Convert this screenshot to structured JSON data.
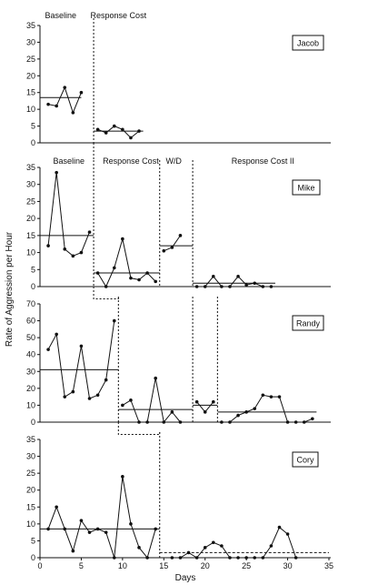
{
  "figure": {
    "ylabel": "Rate of Aggression per Hour",
    "xlabel": "Days",
    "x_ticks": [
      0,
      5,
      10,
      15,
      20,
      25,
      30,
      35
    ]
  },
  "chart_data": [
    {
      "type": "line",
      "participant": "Jacob",
      "ylim": [
        0,
        35
      ],
      "y_ticks": [
        0,
        5,
        10,
        15,
        20,
        25,
        30,
        35
      ],
      "phase_labels": [
        {
          "text": "Baseline",
          "x": 2.5
        },
        {
          "text": "Response Cost",
          "x": 9.5
        }
      ],
      "phase_changes": [
        6.5
      ],
      "series": [
        {
          "x": [
            1,
            2,
            3,
            4,
            5
          ],
          "values": [
            11.5,
            11,
            16.5,
            9,
            15
          ]
        },
        {
          "x": [
            7,
            8,
            9,
            10,
            11,
            12
          ],
          "values": [
            4,
            3,
            5,
            4,
            1.5,
            3.5
          ]
        }
      ],
      "means": [
        {
          "x0": 0,
          "x1": 5,
          "value": 13.5
        },
        {
          "x0": 6.5,
          "x1": 12.5,
          "value": 3.5
        }
      ]
    },
    {
      "type": "line",
      "participant": "Mike",
      "ylim": [
        0,
        35
      ],
      "y_ticks": [
        0,
        5,
        10,
        15,
        20,
        25,
        30,
        35
      ],
      "phase_labels": [
        {
          "text": "Baseline",
          "x": 3.5
        },
        {
          "text": "Response Cost",
          "x": 11
        },
        {
          "text": "W/D",
          "x": 16.2
        },
        {
          "text": "Response Cost II",
          "x": 27
        }
      ],
      "phase_changes": [
        6.5,
        14.5,
        18.5
      ],
      "series": [
        {
          "x": [
            1,
            2,
            3,
            4,
            5,
            6
          ],
          "values": [
            12,
            33.5,
            11,
            9,
            10,
            16
          ]
        },
        {
          "x": [
            7,
            8,
            9,
            10,
            11,
            12,
            13,
            14
          ],
          "values": [
            4,
            0,
            5.5,
            14,
            2.5,
            2,
            4,
            1.5
          ]
        },
        {
          "x": [
            15,
            16,
            17
          ],
          "values": [
            10.5,
            11.5,
            15
          ]
        },
        {
          "x": [
            19,
            20,
            21,
            22,
            23,
            24,
            25,
            26,
            27,
            28
          ],
          "values": [
            0,
            0,
            3,
            0,
            0,
            3,
            0.5,
            1,
            0,
            0
          ]
        }
      ],
      "means": [
        {
          "x0": 0,
          "x1": 6.5,
          "value": 15
        },
        {
          "x0": 6.5,
          "x1": 14.5,
          "value": 4
        },
        {
          "x0": 14.5,
          "x1": 18.5,
          "value": 12
        },
        {
          "x0": 18.5,
          "x1": 28.5,
          "value": 1
        }
      ]
    },
    {
      "type": "line",
      "participant": "Randy",
      "ylim": [
        0,
        70
      ],
      "y_ticks": [
        0,
        10,
        20,
        30,
        40,
        50,
        60,
        70
      ],
      "phase_labels": [],
      "phase_changes": [
        9.5,
        18.5,
        21.5
      ],
      "series": [
        {
          "x": [
            1,
            2,
            3,
            4,
            5,
            6,
            7,
            8,
            9
          ],
          "values": [
            43,
            52,
            15,
            18,
            45,
            14,
            16,
            25,
            60
          ]
        },
        {
          "x": [
            10,
            11,
            12,
            13,
            14,
            15,
            16,
            17
          ],
          "values": [
            10,
            13,
            0,
            0,
            26,
            0,
            6,
            0
          ]
        },
        {
          "x": [
            19,
            20,
            21
          ],
          "values": [
            12,
            6,
            12
          ]
        },
        {
          "x": [
            22,
            23,
            24,
            25,
            26,
            27,
            28,
            29,
            30,
            31,
            32,
            33
          ],
          "values": [
            0,
            0,
            4,
            6,
            8,
            16,
            15,
            15,
            0,
            0,
            0,
            2
          ]
        }
      ],
      "means": [
        {
          "x0": 0,
          "x1": 9.5,
          "value": 31
        },
        {
          "x0": 9.5,
          "x1": 18.5,
          "value": 7.5
        },
        {
          "x0": 18.5,
          "x1": 21.5,
          "value": 10
        },
        {
          "x0": 21.5,
          "x1": 33.5,
          "value": 6
        }
      ]
    },
    {
      "type": "line",
      "participant": "Cory",
      "ylim": [
        0,
        35
      ],
      "y_ticks": [
        0,
        5,
        10,
        15,
        20,
        25,
        30,
        35
      ],
      "phase_labels": [],
      "phase_changes": [
        14.5
      ],
      "series": [
        {
          "x": [
            1,
            2,
            3,
            4,
            5,
            6,
            7,
            8,
            9,
            10,
            11,
            12,
            13,
            14
          ],
          "values": [
            8.5,
            15,
            8.5,
            2,
            11,
            7.5,
            8.5,
            7.5,
            0,
            24,
            10,
            3,
            0,
            8.5
          ]
        },
        {
          "x": [
            16,
            17,
            18,
            19,
            20,
            21,
            22,
            23,
            24,
            25,
            26,
            27,
            28,
            29,
            30,
            31
          ],
          "values": [
            0,
            0,
            1.5,
            0,
            3,
            4.5,
            3.5,
            0,
            0,
            0,
            0,
            0,
            3.5,
            9,
            7,
            0
          ]
        }
      ],
      "means": [
        {
          "x0": 0,
          "x1": 14.5,
          "value": 8.5
        },
        {
          "x0": 14.5,
          "x1": 35,
          "value": 1.5
        }
      ]
    }
  ]
}
